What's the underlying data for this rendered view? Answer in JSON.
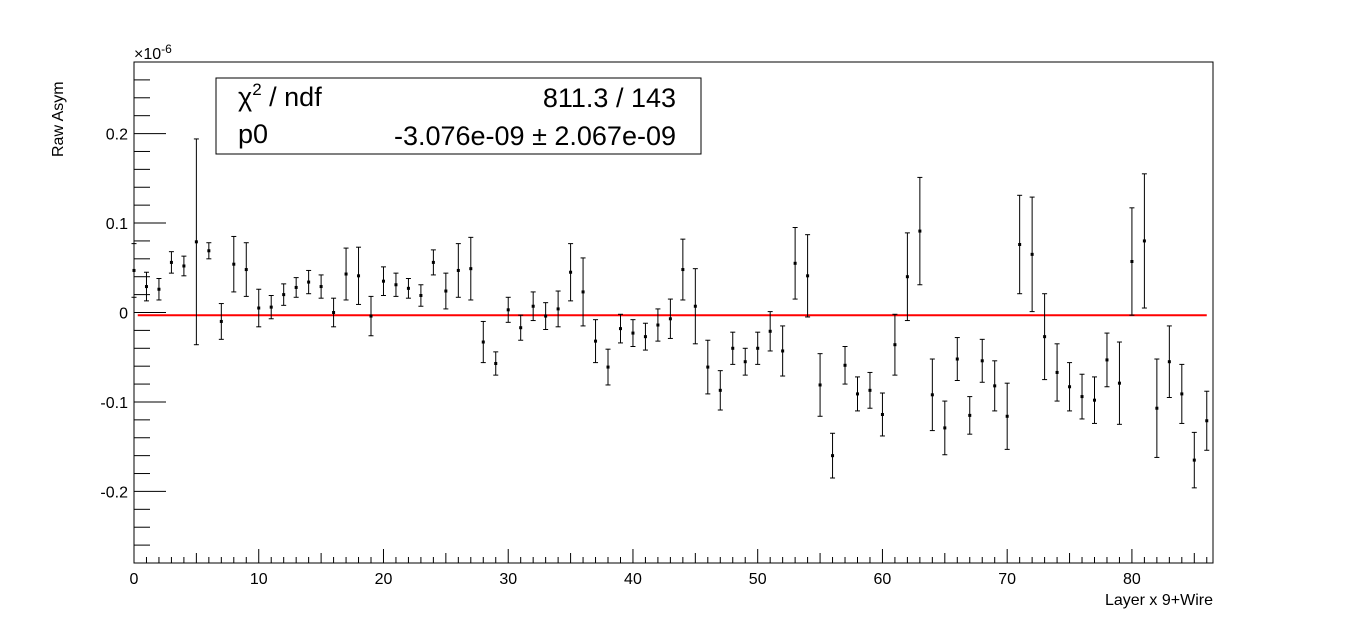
{
  "chart_data": {
    "type": "scatter",
    "xlabel": "Layer x 9+Wire",
    "ylabel": "Raw Asym",
    "y_exponent_label": "×10",
    "y_exponent": "-6",
    "xlim": [
      0,
      86.5
    ],
    "ylim": [
      -0.28,
      0.28
    ],
    "x_ticks": [
      0,
      10,
      20,
      30,
      40,
      50,
      60,
      70,
      80
    ],
    "y_ticks": [
      -0.2,
      -0.1,
      0,
      0.1,
      0.2
    ],
    "y_tick_labels": [
      "-0.2",
      "-0.1",
      "0",
      "0.1",
      "0.2"
    ],
    "grid": false,
    "fit_line": {
      "value": -0.0031,
      "color": "#ff0000",
      "x_range": [
        0.3,
        86
      ]
    },
    "stats_box": {
      "row1_label": "χ",
      "row1_label_sup": "2",
      "row1_label_rest": " / ndf",
      "row1_value": "811.3 / 143",
      "row2_label": "p0",
      "row2_value": "-3.076e-09 ± 2.067e-09"
    },
    "points": [
      {
        "x": 0,
        "y": 0.047,
        "err": 0.03
      },
      {
        "x": 1,
        "y": 0.029,
        "err": 0.016
      },
      {
        "x": 2,
        "y": 0.026,
        "err": 0.012
      },
      {
        "x": 3,
        "y": 0.056,
        "err": 0.012
      },
      {
        "x": 4,
        "y": 0.052,
        "err": 0.011
      },
      {
        "x": 5,
        "y": 0.079,
        "err": 0.115
      },
      {
        "x": 6,
        "y": 0.069,
        "err": 0.009
      },
      {
        "x": 7,
        "y": -0.01,
        "err": 0.02
      },
      {
        "x": 8,
        "y": 0.054,
        "err": 0.031
      },
      {
        "x": 9,
        "y": 0.048,
        "err": 0.03
      },
      {
        "x": 10,
        "y": 0.005,
        "err": 0.021
      },
      {
        "x": 11,
        "y": 0.006,
        "err": 0.013
      },
      {
        "x": 12,
        "y": 0.02,
        "err": 0.012
      },
      {
        "x": 13,
        "y": 0.028,
        "err": 0.011
      },
      {
        "x": 14,
        "y": 0.034,
        "err": 0.013
      },
      {
        "x": 15,
        "y": 0.029,
        "err": 0.013
      },
      {
        "x": 16,
        "y": 0.0,
        "err": 0.016
      },
      {
        "x": 17,
        "y": 0.043,
        "err": 0.029
      },
      {
        "x": 18,
        "y": 0.041,
        "err": 0.032
      },
      {
        "x": 19,
        "y": -0.004,
        "err": 0.022
      },
      {
        "x": 20,
        "y": 0.035,
        "err": 0.016
      },
      {
        "x": 21,
        "y": 0.031,
        "err": 0.013
      },
      {
        "x": 22,
        "y": 0.027,
        "err": 0.011
      },
      {
        "x": 23,
        "y": 0.019,
        "err": 0.012
      },
      {
        "x": 24,
        "y": 0.056,
        "err": 0.014
      },
      {
        "x": 25,
        "y": 0.024,
        "err": 0.02
      },
      {
        "x": 26,
        "y": 0.047,
        "err": 0.03
      },
      {
        "x": 27,
        "y": 0.049,
        "err": 0.035
      },
      {
        "x": 28,
        "y": -0.033,
        "err": 0.023
      },
      {
        "x": 29,
        "y": -0.057,
        "err": 0.013
      },
      {
        "x": 30,
        "y": 0.003,
        "err": 0.014
      },
      {
        "x": 31,
        "y": -0.017,
        "err": 0.014
      },
      {
        "x": 32,
        "y": 0.007,
        "err": 0.016
      },
      {
        "x": 33,
        "y": -0.004,
        "err": 0.015
      },
      {
        "x": 34,
        "y": 0.004,
        "err": 0.02
      },
      {
        "x": 35,
        "y": 0.045,
        "err": 0.032
      },
      {
        "x": 36,
        "y": 0.023,
        "err": 0.038
      },
      {
        "x": 37,
        "y": -0.032,
        "err": 0.024
      },
      {
        "x": 38,
        "y": -0.061,
        "err": 0.02
      },
      {
        "x": 39,
        "y": -0.018,
        "err": 0.016
      },
      {
        "x": 40,
        "y": -0.023,
        "err": 0.015
      },
      {
        "x": 41,
        "y": -0.027,
        "err": 0.015
      },
      {
        "x": 42,
        "y": -0.014,
        "err": 0.018
      },
      {
        "x": 43,
        "y": -0.007,
        "err": 0.022
      },
      {
        "x": 44,
        "y": 0.048,
        "err": 0.034
      },
      {
        "x": 45,
        "y": 0.007,
        "err": 0.042
      },
      {
        "x": 46,
        "y": -0.061,
        "err": 0.03
      },
      {
        "x": 47,
        "y": -0.087,
        "err": 0.022
      },
      {
        "x": 48,
        "y": -0.04,
        "err": 0.018
      },
      {
        "x": 49,
        "y": -0.055,
        "err": 0.015
      },
      {
        "x": 50,
        "y": -0.04,
        "err": 0.018
      },
      {
        "x": 51,
        "y": -0.021,
        "err": 0.022
      },
      {
        "x": 52,
        "y": -0.043,
        "err": 0.028
      },
      {
        "x": 53,
        "y": 0.055,
        "err": 0.04
      },
      {
        "x": 54,
        "y": 0.041,
        "err": 0.046
      },
      {
        "x": 55,
        "y": -0.081,
        "err": 0.035
      },
      {
        "x": 56,
        "y": -0.16,
        "err": 0.025
      },
      {
        "x": 57,
        "y": -0.059,
        "err": 0.021
      },
      {
        "x": 58,
        "y": -0.091,
        "err": 0.019
      },
      {
        "x": 59,
        "y": -0.087,
        "err": 0.02
      },
      {
        "x": 60,
        "y": -0.114,
        "err": 0.024
      },
      {
        "x": 61,
        "y": -0.036,
        "err": 0.034
      },
      {
        "x": 62,
        "y": 0.04,
        "err": 0.049
      },
      {
        "x": 63,
        "y": 0.091,
        "err": 0.06
      },
      {
        "x": 64,
        "y": -0.092,
        "err": 0.04
      },
      {
        "x": 65,
        "y": -0.129,
        "err": 0.03
      },
      {
        "x": 66,
        "y": -0.052,
        "err": 0.024
      },
      {
        "x": 67,
        "y": -0.115,
        "err": 0.021
      },
      {
        "x": 68,
        "y": -0.054,
        "err": 0.024
      },
      {
        "x": 69,
        "y": -0.082,
        "err": 0.028
      },
      {
        "x": 70,
        "y": -0.116,
        "err": 0.037
      },
      {
        "x": 71,
        "y": 0.076,
        "err": 0.055
      },
      {
        "x": 72,
        "y": 0.065,
        "err": 0.064
      },
      {
        "x": 73,
        "y": -0.027,
        "err": 0.048
      },
      {
        "x": 74,
        "y": -0.067,
        "err": 0.032
      },
      {
        "x": 75,
        "y": -0.083,
        "err": 0.027
      },
      {
        "x": 76,
        "y": -0.094,
        "err": 0.025
      },
      {
        "x": 77,
        "y": -0.098,
        "err": 0.026
      },
      {
        "x": 78,
        "y": -0.053,
        "err": 0.03
      },
      {
        "x": 79,
        "y": -0.079,
        "err": 0.046
      },
      {
        "x": 80,
        "y": 0.057,
        "err": 0.06
      },
      {
        "x": 81,
        "y": 0.08,
        "err": 0.075
      },
      {
        "x": 82,
        "y": -0.107,
        "err": 0.055
      },
      {
        "x": 83,
        "y": -0.055,
        "err": 0.04
      },
      {
        "x": 84,
        "y": -0.091,
        "err": 0.033
      },
      {
        "x": 85,
        "y": -0.165,
        "err": 0.031
      },
      {
        "x": 86,
        "y": -0.121,
        "err": 0.033
      }
    ]
  }
}
